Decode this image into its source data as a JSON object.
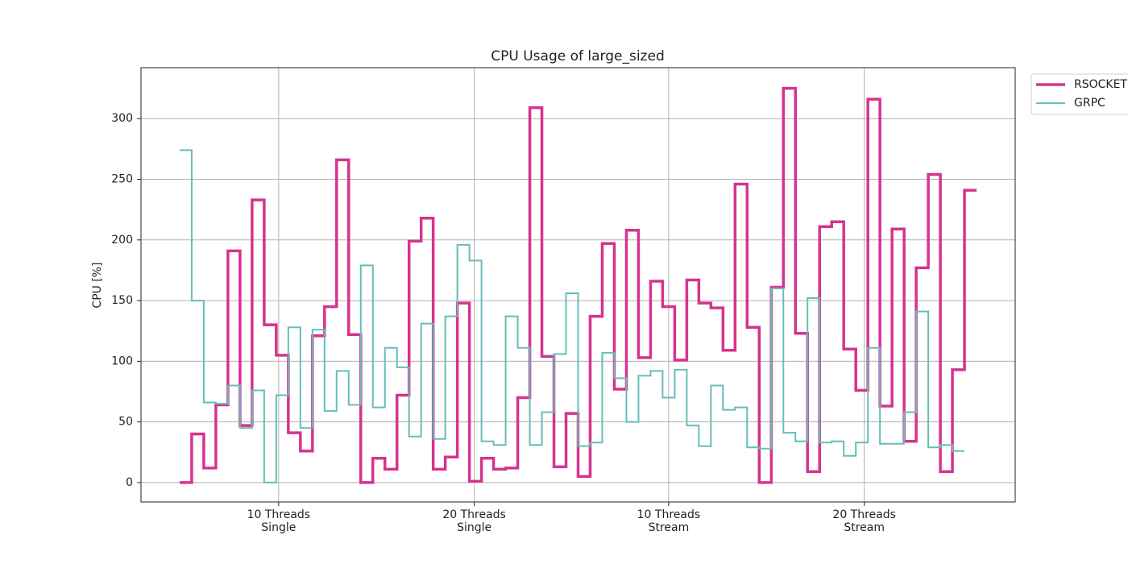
{
  "chart_data": {
    "type": "step",
    "title": "CPU Usage of large_sized",
    "ylabel": "CPU [%]",
    "xlim": [
      -3.2,
      69.2
    ],
    "ylim": [
      -16,
      342
    ],
    "xticks": [
      {
        "value": 8.2,
        "label": "10 Threads\nSingle"
      },
      {
        "value": 24.4,
        "label": "20 Threads\nSingle"
      },
      {
        "value": 40.5,
        "label": "10 Threads\nStream"
      },
      {
        "value": 56.7,
        "label": "20 Threads\nStream"
      }
    ],
    "yticks": [
      0,
      50,
      100,
      150,
      200,
      250,
      300
    ],
    "grid": true,
    "legend": "upper right outside",
    "series": [
      {
        "name": "RSOCKET",
        "color": "#d6338f",
        "width": 3.5,
        "x": [
          0,
          1,
          2,
          3,
          4,
          5,
          6,
          7,
          8,
          9,
          10,
          11,
          12,
          13,
          14,
          15,
          16,
          17,
          18,
          19,
          20,
          21,
          22,
          23,
          24,
          25,
          26,
          27,
          28,
          29,
          30,
          31,
          32,
          33,
          34,
          35,
          36,
          37,
          38,
          39,
          40,
          41,
          42,
          43,
          44,
          45,
          46,
          47,
          48,
          49,
          50,
          51,
          52,
          53,
          54,
          55,
          56,
          57,
          58,
          59,
          60,
          61,
          62,
          63,
          64,
          65
        ],
        "values": [
          0,
          40,
          12,
          64,
          191,
          47,
          233,
          130,
          105,
          41,
          26,
          121,
          145,
          266,
          122,
          0,
          20,
          11,
          72,
          199,
          218,
          11,
          21,
          148,
          1,
          20,
          11,
          12,
          70,
          309,
          104,
          13,
          57,
          5,
          137,
          197,
          77,
          208,
          103,
          166,
          145,
          101,
          167,
          148,
          144,
          109,
          246,
          128,
          0,
          161,
          325,
          123,
          9,
          211,
          215,
          110,
          76,
          316,
          63,
          209,
          34,
          177,
          254,
          9,
          93,
          241
        ]
      },
      {
        "name": "GRPC",
        "color": "#66bdb8",
        "width": 2,
        "x": [
          0,
          1,
          2,
          3,
          4,
          5,
          6,
          7,
          8,
          9,
          10,
          11,
          12,
          13,
          14,
          15,
          16,
          17,
          18,
          19,
          20,
          21,
          22,
          23,
          24,
          25,
          26,
          27,
          28,
          29,
          30,
          31,
          32,
          33,
          34,
          35,
          36,
          37,
          38,
          39,
          40,
          41,
          42,
          43,
          44,
          45,
          46,
          47,
          48,
          49,
          50,
          51,
          52,
          53,
          54,
          55,
          56,
          57,
          58,
          59,
          60,
          61,
          62,
          63,
          64
        ],
        "values": [
          274,
          150,
          66,
          65,
          80,
          45,
          76,
          0,
          72,
          128,
          45,
          126,
          59,
          92,
          64,
          179,
          62,
          111,
          95,
          38,
          131,
          36,
          137,
          196,
          183,
          34,
          31,
          137,
          111,
          31,
          58,
          106,
          156,
          30,
          33,
          107,
          86,
          50,
          88,
          92,
          70,
          93,
          47,
          30,
          80,
          60,
          62,
          29,
          28,
          160,
          41,
          34,
          152,
          33,
          34,
          22,
          33,
          111,
          32,
          32,
          58,
          141,
          29,
          31,
          26
        ]
      }
    ]
  }
}
